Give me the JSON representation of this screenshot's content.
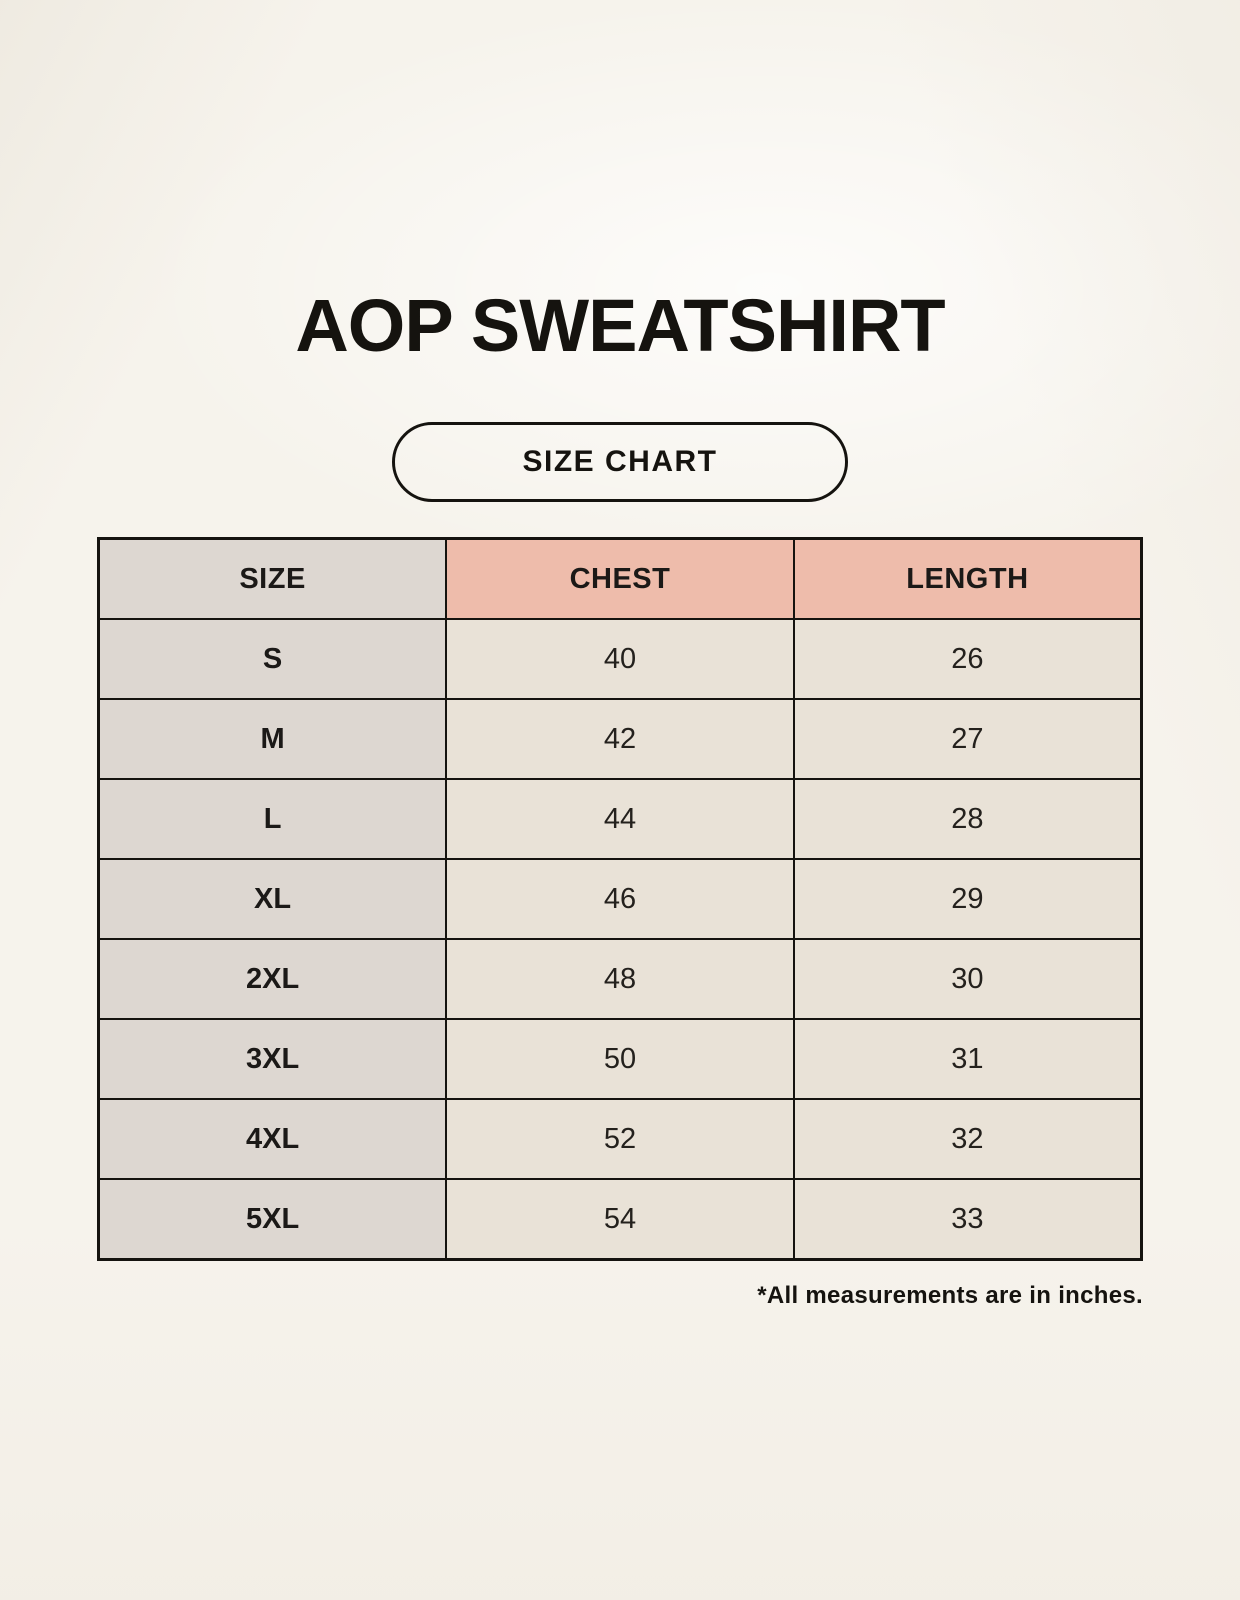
{
  "title": "AOP SWEATSHIRT",
  "badge": {
    "label": "SIZE CHART"
  },
  "size_table": {
    "columns": [
      "SIZE",
      "CHEST",
      "LENGTH"
    ],
    "rows": [
      {
        "size": "S",
        "chest": "40",
        "length": "26"
      },
      {
        "size": "M",
        "chest": "42",
        "length": "27"
      },
      {
        "size": "L",
        "chest": "44",
        "length": "28"
      },
      {
        "size": "XL",
        "chest": "46",
        "length": "29"
      },
      {
        "size": "2XL",
        "chest": "48",
        "length": "30"
      },
      {
        "size": "3XL",
        "chest": "50",
        "length": "31"
      },
      {
        "size": "4XL",
        "chest": "52",
        "length": "32"
      },
      {
        "size": "5XL",
        "chest": "54",
        "length": "33"
      }
    ]
  },
  "footnote": "*All measurements are in inches.",
  "colors": {
    "page_background": "#f6f3ec",
    "size_column_fill": "#ddd7d1",
    "header_accent_fill": "#eebcab",
    "data_cell_fill": "#e9e2d7",
    "border": "#15130f",
    "text": "#15130f"
  },
  "chart_data": {
    "type": "table",
    "title": "AOP SWEATSHIRT",
    "subtitle": "SIZE CHART",
    "columns": [
      "SIZE",
      "CHEST",
      "LENGTH"
    ],
    "rows": [
      [
        "S",
        40,
        26
      ],
      [
        "M",
        42,
        27
      ],
      [
        "L",
        44,
        28
      ],
      [
        "XL",
        46,
        29
      ],
      [
        "2XL",
        48,
        30
      ],
      [
        "3XL",
        50,
        31
      ],
      [
        "4XL",
        52,
        32
      ],
      [
        "5XL",
        54,
        33
      ]
    ],
    "units": "inches"
  }
}
